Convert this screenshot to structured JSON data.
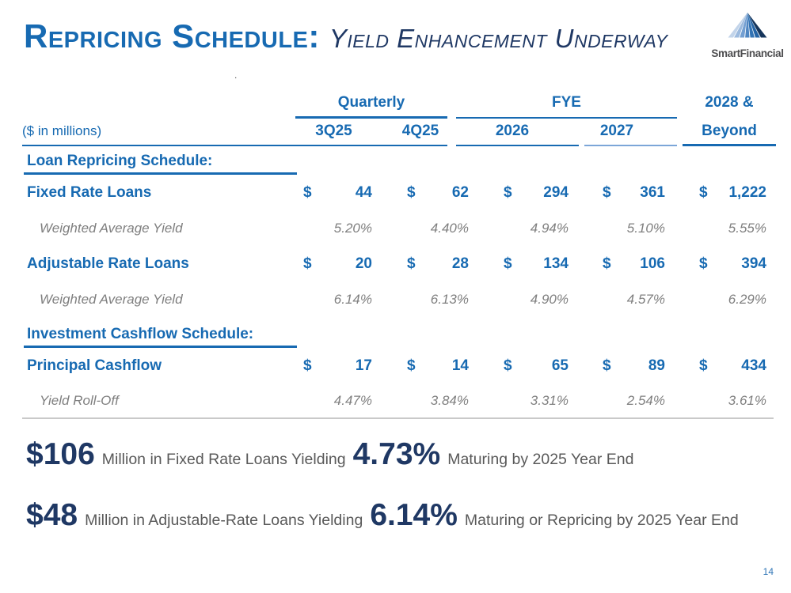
{
  "slide": {
    "title": "Repricing Schedule:",
    "subtitle": "Yield Enhancement Underway",
    "stray_dot": ".",
    "page_number": "14"
  },
  "logo": {
    "text": "SmartFinancial",
    "icon": "mountain-triangle-icon"
  },
  "table": {
    "units_label": "($ in millions)",
    "groups": [
      {
        "label": "Quarterly"
      },
      {
        "label": "FYE"
      },
      {
        "label": "2028 &"
      }
    ],
    "columns": [
      "3Q25",
      "4Q25",
      "2026",
      "2027",
      "Beyond"
    ],
    "rows": [
      {
        "type": "section",
        "label": "Loan Repricing Schedule:"
      },
      {
        "type": "money",
        "label": "Fixed Rate Loans",
        "currency": "$",
        "values": [
          "44",
          "62",
          "294",
          "361",
          "1,222"
        ]
      },
      {
        "type": "yield",
        "label": "Weighted Average Yield",
        "values": [
          "5.20%",
          "4.40%",
          "4.94%",
          "5.10%",
          "5.55%"
        ]
      },
      {
        "type": "money",
        "label": "Adjustable Rate Loans",
        "currency": "$",
        "values": [
          "20",
          "28",
          "134",
          "106",
          "394"
        ]
      },
      {
        "type": "yield",
        "label": "Weighted Average Yield",
        "values": [
          "6.14%",
          "6.13%",
          "4.90%",
          "4.57%",
          "6.29%"
        ]
      },
      {
        "type": "section",
        "label": "Investment Cashflow Schedule:"
      },
      {
        "type": "money",
        "label": "Principal Cashflow",
        "currency": "$",
        "values": [
          "17",
          "14",
          "65",
          "89",
          "434"
        ]
      },
      {
        "type": "yield",
        "label": "Yield Roll-Off",
        "values": [
          "4.47%",
          "3.84%",
          "3.31%",
          "2.54%",
          "3.61%"
        ]
      }
    ]
  },
  "callouts": [
    {
      "amount": "$106",
      "text1": "Million in Fixed Rate Loans Yielding",
      "rate": "4.73%",
      "text2": "Maturing by 2025 Year End"
    },
    {
      "amount": "$48",
      "text1": "Million in Adjustable-Rate Loans Yielding",
      "rate": "6.14%",
      "text2": "Maturing or Repricing by 2025 Year End"
    }
  ],
  "colors": {
    "table_blue": "#176AB2",
    "navy": "#1F3864",
    "yield_gray": "#7F7F7F",
    "callout_gray": "#595959",
    "light_rule_blue": "#7CA6D8",
    "separator_gray": "#C9C9C9",
    "page_number_blue": "#2E75B6",
    "logo_text_gray": "#4D4D4F"
  }
}
